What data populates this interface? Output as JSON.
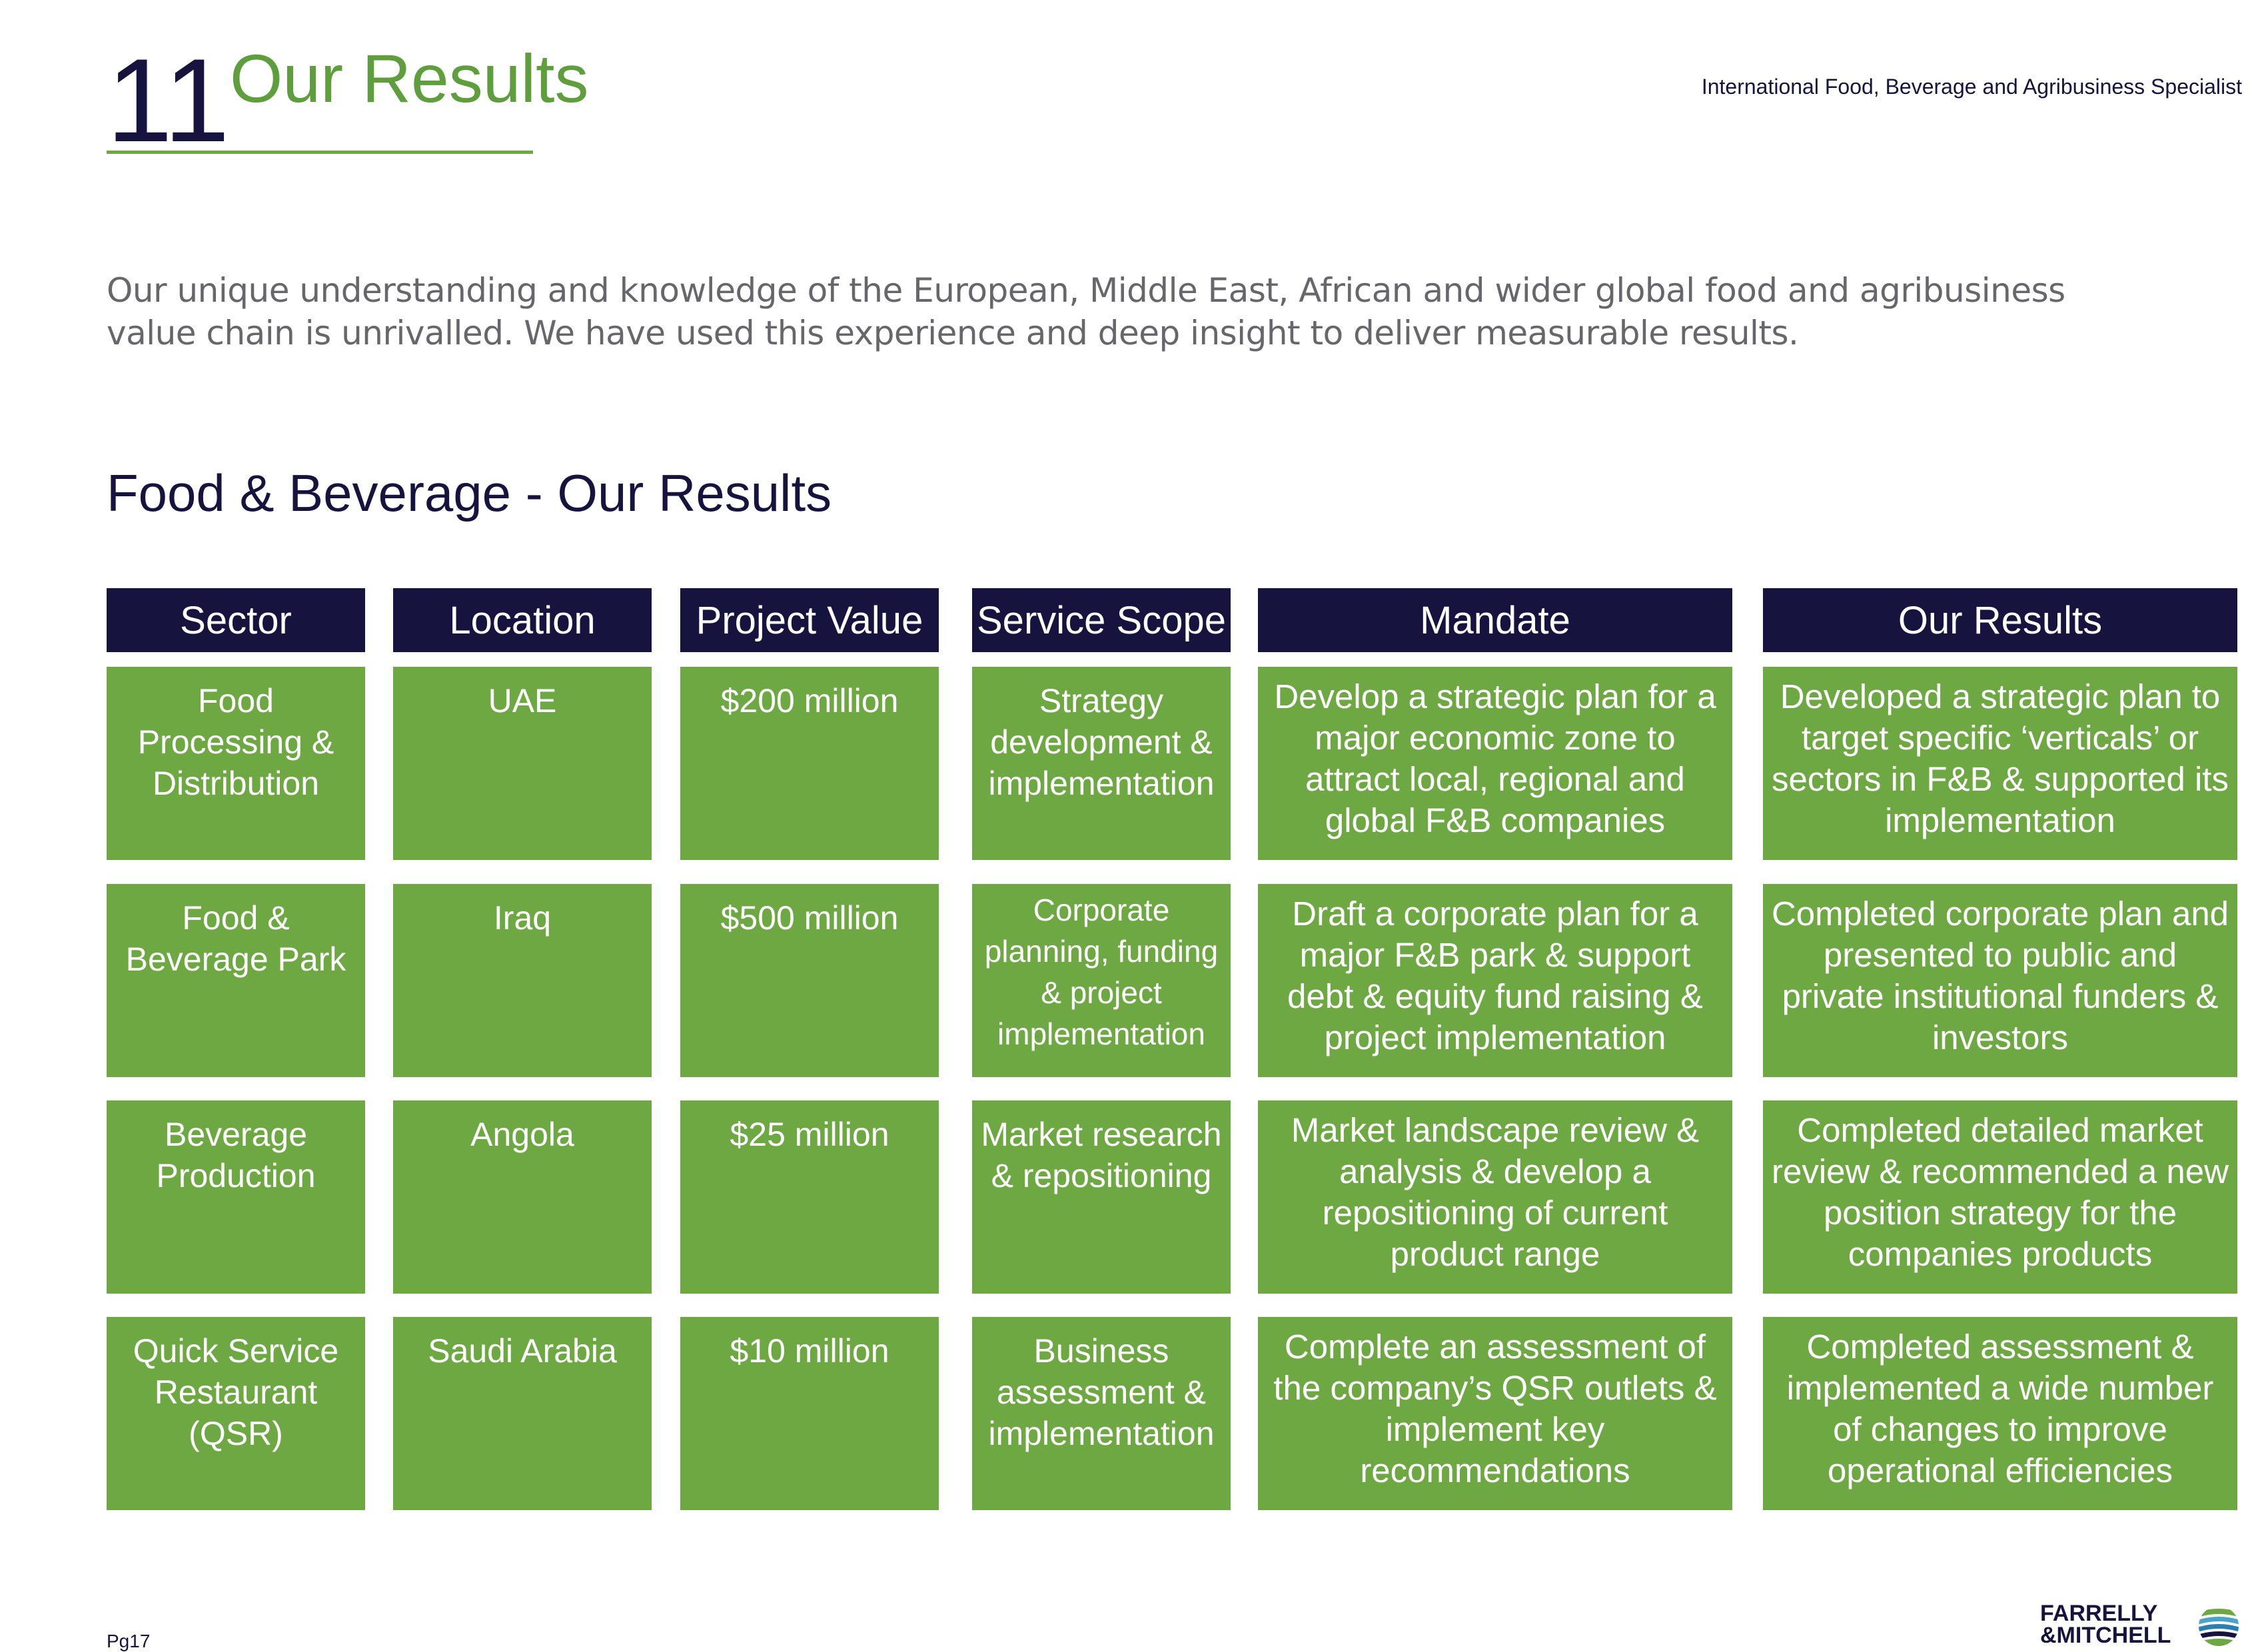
{
  "header": {
    "section_number": "11",
    "section_title": "Our Results",
    "tagline": "International Food, Beverage and Agribusiness Specialist"
  },
  "intro": "Our unique understanding and knowledge of the European, Middle East, African and wider global food and agribusiness value chain is unrivalled. We have used this experience and deep insight to deliver measurable results.",
  "subheading": "Food & Beverage - Our Results",
  "table": {
    "columns": [
      "Sector",
      "Location",
      "Project Value",
      "Service Scope",
      "Mandate",
      "Our Results"
    ],
    "rows": [
      {
        "sector": "Food Processing & Distribution",
        "location": "UAE",
        "value": "$200 million",
        "scope": "Strategy development & implementation",
        "mandate": "Develop a strategic plan for a major economic zone to attract local, regional and global F&B companies",
        "results": "Developed a strategic plan to target specific ‘verticals’ or sectors in F&B & supported its implementation"
      },
      {
        "sector": "Food & Beverage Park",
        "location": "Iraq",
        "value": "$500 million",
        "scope": "Corporate planning, funding & project implementation",
        "mandate": "Draft a corporate plan for a major F&B park & support debt & equity fund raising & project implementation",
        "results": "Completed corporate plan and presented to public and private institutional funders & investors"
      },
      {
        "sector": "Beverage Production",
        "location": "Angola",
        "value": "$25 million",
        "scope": "Market research & repositioning",
        "mandate": "Market landscape review & analysis & develop a repositioning of current product range",
        "results": "Completed detailed market review & recommended a new position strategy for the companies products"
      },
      {
        "sector": "Quick Service Restaurant (QSR)",
        "location": "Saudi Arabia",
        "value": "$10 million",
        "scope": "Business assessment & implementation",
        "mandate": "Complete an assessment of the company’s QSR outlets & implement key recommendations",
        "results": "Completed assessment & implemented a wide number of changes to improve operational efficiencies"
      }
    ]
  },
  "footer": {
    "page_number": "Pg17",
    "logo_line1": "FARRELLY",
    "logo_line2": "&MITCHELL"
  },
  "colors": {
    "navy": "#16133f",
    "green": "#6ea843",
    "title_green": "#5f9e3c",
    "body_grey": "#66666b"
  }
}
